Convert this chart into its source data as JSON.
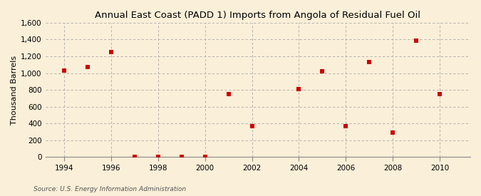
{
  "title": "Annual East Coast (PADD 1) Imports from Angola of Residual Fuel Oil",
  "ylabel": "Thousand Barrels",
  "source": "Source: U.S. Energy Information Administration",
  "background_color": "#faefd8",
  "plot_background_color": "#faefd8",
  "marker_color": "#cc0000",
  "marker": "s",
  "marker_size": 4,
  "xlim": [
    1993.2,
    2011.3
  ],
  "ylim": [
    0,
    1600
  ],
  "yticks": [
    0,
    200,
    400,
    600,
    800,
    1000,
    1200,
    1400,
    1600
  ],
  "xticks": [
    1994,
    1996,
    1998,
    2000,
    2002,
    2004,
    2006,
    2008,
    2010
  ],
  "years": [
    1994,
    1995,
    1996,
    1997,
    1998,
    1999,
    2000,
    2001,
    2002,
    2003,
    2004,
    2005,
    2006,
    2007,
    2008,
    2009,
    2010
  ],
  "values": [
    1030,
    1070,
    1250,
    5,
    5,
    5,
    5,
    750,
    365,
    null,
    810,
    1020,
    365,
    1130,
    290,
    1390,
    750
  ]
}
